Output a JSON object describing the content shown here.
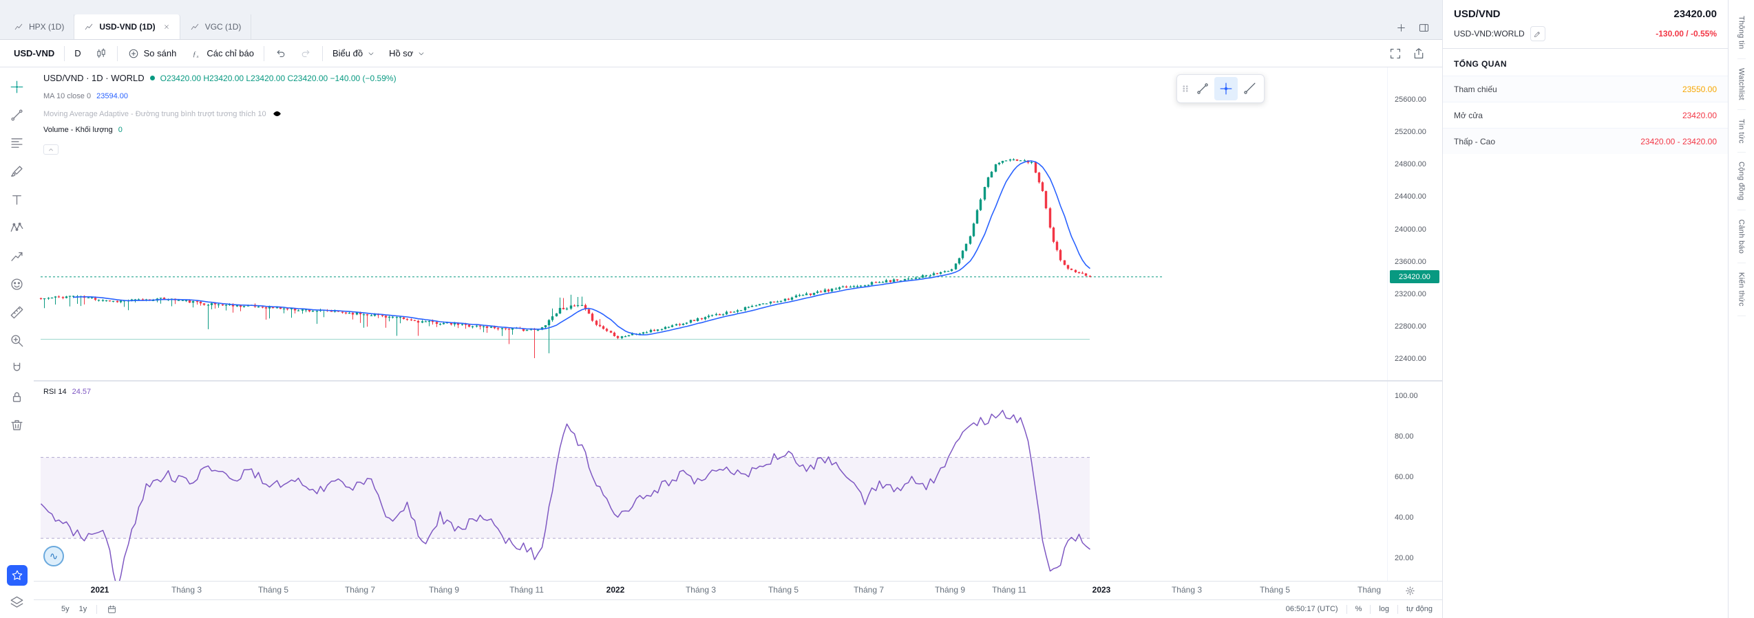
{
  "window": {
    "tabs": [
      {
        "label": "HPX (1D)",
        "active": false
      },
      {
        "label": "USD-VND (1D)",
        "active": true
      },
      {
        "label": "VGC (1D)",
        "active": false
      }
    ]
  },
  "toolbar": {
    "symbol": "USD-VND",
    "interval": "D",
    "compare_label": "So sánh",
    "indicators_label": "Các chỉ báo",
    "chart_label": "Biểu đồ",
    "profile_label": "Hồ sơ"
  },
  "legend": {
    "series_title": "USD/VND · 1D · WORLD",
    "ohlc": "O23420.00  H23420.00  L23420.00  C23420.00  −140.00 (−0.59%)",
    "ma_label": "MA 10 close 0",
    "ma_value": "23594.00",
    "adaptive_label": "Moving Average Adaptive - Đường trung bình trượt tương thích 10",
    "volume_label": "Volume - Khối lượng",
    "volume_value": "0",
    "rsi_label": "RSI 14",
    "rsi_value": "24.57"
  },
  "left_toolbar": {
    "tools": [
      {
        "icon": "crosshair",
        "name": "crosshair-tool",
        "active": true
      },
      {
        "icon": "trendline",
        "name": "trend-line-tool",
        "active": false
      },
      {
        "icon": "fib",
        "name": "fib-retracement-tool",
        "active": false
      },
      {
        "icon": "brush",
        "name": "brush-tool",
        "active": false
      },
      {
        "icon": "text",
        "name": "text-tool",
        "active": false
      },
      {
        "icon": "pattern",
        "name": "xabcd-pattern-tool",
        "active": false
      },
      {
        "icon": "forecast",
        "name": "forecast-tool",
        "active": false
      },
      {
        "icon": "emoji",
        "name": "emoji-tool",
        "active": false
      },
      {
        "icon": "measure",
        "name": "measure-tool",
        "active": false
      },
      {
        "icon": "zoom",
        "name": "zoom-in-tool",
        "active": false
      },
      {
        "icon": "magnet",
        "name": "magnet-mode-tool",
        "active": false
      },
      {
        "icon": "lock",
        "name": "lock-all-drawings-tool",
        "active": false
      },
      {
        "icon": "trash",
        "name": "remove-all-drawings-tool",
        "active": false
      }
    ]
  },
  "floating_toolbar": {
    "tools": [
      {
        "icon": "trendline",
        "name": "float-trend-line",
        "selected": false
      },
      {
        "icon": "crossline",
        "name": "float-cross-line",
        "selected": true
      },
      {
        "icon": "ray",
        "name": "float-ray",
        "selected": false
      }
    ]
  },
  "chart_data": {
    "type": "candlestick",
    "title": "USD/VND · 1D · WORLD",
    "last_price": 23420,
    "ohlc_display": {
      "open": "23420.00",
      "high": "23420.00",
      "low": "23420.00",
      "close": "23420.00",
      "change": "−140.00 (−0.59%)"
    },
    "ma": {
      "period": 10,
      "value": 23594
    },
    "rsi": {
      "period": 14,
      "value": 24.57,
      "upper_band": 70,
      "lower_band": 30,
      "axis_ticks": [
        100,
        80,
        60,
        40,
        20
      ]
    },
    "baseline_price": 22650,
    "price_axis_ticks": [
      25600,
      25200,
      24800,
      24400,
      24000,
      23600,
      23200,
      22800,
      22400
    ],
    "x_labels": [
      {
        "label": "2021",
        "t": 0.049,
        "year": true
      },
      {
        "label": "Tháng 3",
        "t": 0.113,
        "year": false
      },
      {
        "label": "Tháng 5",
        "t": 0.177,
        "year": false
      },
      {
        "label": "Tháng 7",
        "t": 0.241,
        "year": false
      },
      {
        "label": "Tháng 9",
        "t": 0.303,
        "year": false
      },
      {
        "label": "Tháng 11",
        "t": 0.364,
        "year": false
      },
      {
        "label": "2022",
        "t": 0.43,
        "year": true
      },
      {
        "label": "Tháng 3",
        "t": 0.493,
        "year": false
      },
      {
        "label": "Tháng 5",
        "t": 0.554,
        "year": false
      },
      {
        "label": "Tháng 7",
        "t": 0.617,
        "year": false
      },
      {
        "label": "Tháng 9",
        "t": 0.677,
        "year": false
      },
      {
        "label": "Tháng 11",
        "t": 0.721,
        "year": false
      },
      {
        "label": "2023",
        "t": 0.789,
        "year": true
      },
      {
        "label": "Tháng 3",
        "t": 0.852,
        "year": false
      },
      {
        "label": "Tháng 5",
        "t": 0.917,
        "year": false
      },
      {
        "label": "Tháng",
        "t": 0.987,
        "year": false
      }
    ],
    "series": {
      "num_candles": 290,
      "seed": 11,
      "close_anchors": [
        [
          0,
          23150
        ],
        [
          0.03,
          23185
        ],
        [
          0.07,
          23120
        ],
        [
          0.12,
          23150
        ],
        [
          0.16,
          23085
        ],
        [
          0.2,
          23060
        ],
        [
          0.24,
          23020
        ],
        [
          0.28,
          22990
        ],
        [
          0.32,
          22950
        ],
        [
          0.36,
          22870
        ],
        [
          0.4,
          22830
        ],
        [
          0.44,
          22785
        ],
        [
          0.475,
          22760
        ],
        [
          0.495,
          23030
        ],
        [
          0.515,
          23070
        ],
        [
          0.53,
          22830
        ],
        [
          0.55,
          22680
        ],
        [
          0.58,
          22745
        ],
        [
          0.62,
          22880
        ],
        [
          0.66,
          23000
        ],
        [
          0.7,
          23120
        ],
        [
          0.74,
          23230
        ],
        [
          0.78,
          23320
        ],
        [
          0.82,
          23390
        ],
        [
          0.85,
          23445
        ],
        [
          0.87,
          23520
        ],
        [
          0.885,
          23900
        ],
        [
          0.9,
          24560
        ],
        [
          0.91,
          24820
        ],
        [
          0.925,
          24870
        ],
        [
          0.945,
          24830
        ],
        [
          0.955,
          24480
        ],
        [
          0.965,
          23850
        ],
        [
          0.975,
          23560
        ],
        [
          0.985,
          23480
        ],
        [
          1,
          23420
        ]
      ],
      "rsi_anchors": [
        [
          0,
          45
        ],
        [
          0.02,
          38
        ],
        [
          0.04,
          30
        ],
        [
          0.06,
          36
        ],
        [
          0.073,
          4
        ],
        [
          0.085,
          30
        ],
        [
          0.1,
          55
        ],
        [
          0.12,
          62
        ],
        [
          0.14,
          57
        ],
        [
          0.16,
          65
        ],
        [
          0.18,
          59
        ],
        [
          0.2,
          64
        ],
        [
          0.22,
          55
        ],
        [
          0.24,
          61
        ],
        [
          0.26,
          52
        ],
        [
          0.28,
          58
        ],
        [
          0.3,
          55
        ],
        [
          0.315,
          61
        ],
        [
          0.33,
          38
        ],
        [
          0.35,
          46
        ],
        [
          0.365,
          25
        ],
        [
          0.38,
          41
        ],
        [
          0.4,
          34
        ],
        [
          0.42,
          43
        ],
        [
          0.44,
          30
        ],
        [
          0.46,
          26
        ],
        [
          0.475,
          20
        ],
        [
          0.49,
          60
        ],
        [
          0.5,
          88
        ],
        [
          0.51,
          79
        ],
        [
          0.52,
          70
        ],
        [
          0.53,
          55
        ],
        [
          0.55,
          42
        ],
        [
          0.57,
          49
        ],
        [
          0.59,
          55
        ],
        [
          0.61,
          62
        ],
        [
          0.63,
          57
        ],
        [
          0.65,
          66
        ],
        [
          0.67,
          60
        ],
        [
          0.69,
          68
        ],
        [
          0.71,
          72
        ],
        [
          0.73,
          64
        ],
        [
          0.75,
          70
        ],
        [
          0.77,
          59
        ],
        [
          0.785,
          48
        ],
        [
          0.8,
          58
        ],
        [
          0.815,
          52
        ],
        [
          0.83,
          61
        ],
        [
          0.845,
          55
        ],
        [
          0.86,
          66
        ],
        [
          0.875,
          78
        ],
        [
          0.89,
          86
        ],
        [
          0.905,
          89
        ],
        [
          0.915,
          92
        ],
        [
          0.93,
          90
        ],
        [
          0.94,
          84
        ],
        [
          0.95,
          45
        ],
        [
          0.96,
          15
        ],
        [
          0.968,
          12
        ],
        [
          0.978,
          28
        ],
        [
          0.99,
          31
        ],
        [
          1,
          24.57
        ]
      ]
    },
    "colors": {
      "up": "#089981",
      "down": "#f23645",
      "ma": "#2962ff",
      "rsi": "#7e57c2",
      "band_fill": "rgba(126,87,194,0.08)",
      "band_line": "#b0a6cf",
      "last_line": "#089981"
    }
  },
  "time_axis": {
    "gear": "settings"
  },
  "bottom_bar": {
    "ranges": [
      "5y",
      "1y"
    ],
    "clock": "06:50:17 (UTC)",
    "percent": "%",
    "log": "log",
    "auto": "tự động"
  },
  "right_panel": {
    "symbol": "USD/VND",
    "price": "23420.00",
    "ticker": "USD-VND:WORLD",
    "change": "-130.00 / -0.55%",
    "section_title": "TỔNG QUAN",
    "rows": [
      {
        "label": "Tham chiếu",
        "value": "23550.00",
        "color": "#f7a600"
      },
      {
        "label": "Mở cửa",
        "value": "23420.00",
        "color": "#f23645"
      },
      {
        "label": "Thấp - Cao",
        "value": "23420.00 - 23420.00",
        "color": "#f23645"
      }
    ]
  },
  "side_tabs": [
    "Thông tin",
    "Watchlist",
    "Tin tức",
    "Cộng đồng",
    "Cảnh báo",
    "Kiến thức"
  ]
}
